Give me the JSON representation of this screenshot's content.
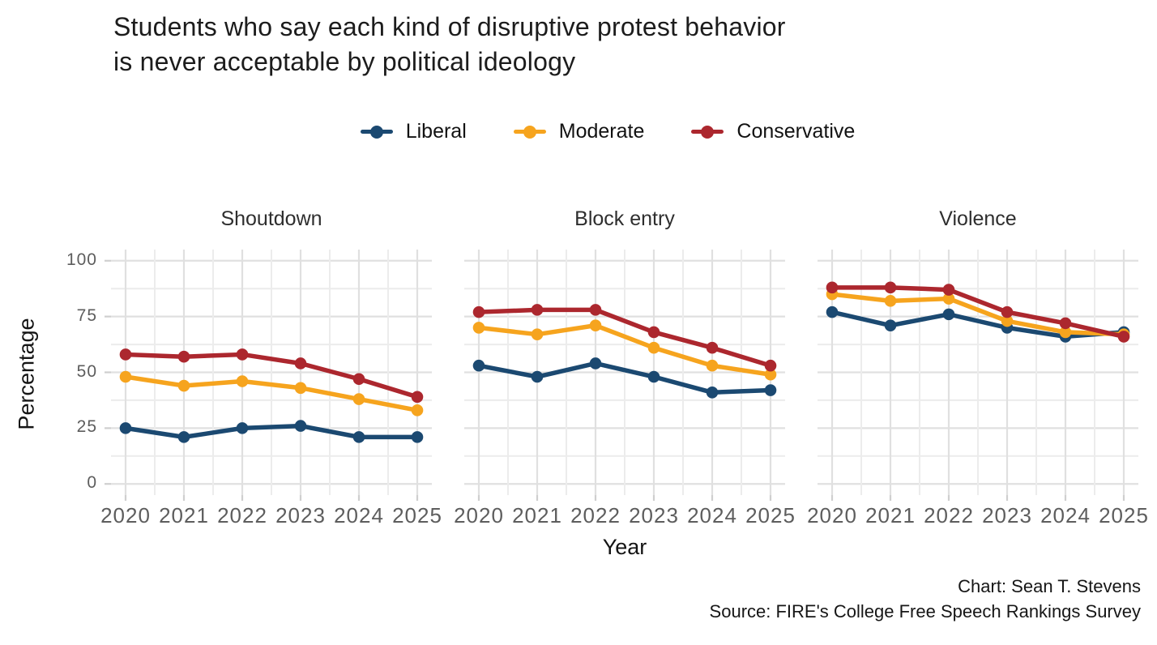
{
  "title": {
    "line1": "Students who say each kind of disruptive protest behavior",
    "line2": "is never acceptable by political ideology"
  },
  "legend": [
    {
      "label": "Liberal",
      "color": "#1B4971"
    },
    {
      "label": "Moderate",
      "color": "#F6A41E"
    },
    {
      "label": "Conservative",
      "color": "#AC272E"
    }
  ],
  "axes": {
    "y_label": "Percentage",
    "x_label": "Year",
    "y_ticks": [
      0,
      25,
      50,
      75,
      100
    ],
    "x_ticks": [
      2020,
      2021,
      2022,
      2023,
      2024,
      2025
    ]
  },
  "footer": {
    "credit": "Chart: Sean T. Stevens",
    "source": "Source: FIRE's College Free Speech Rankings Survey"
  },
  "chart_data": {
    "type": "line",
    "title": "Students who say each kind of disruptive protest behavior is never acceptable by political ideology",
    "xlabel": "Year",
    "ylabel": "Percentage",
    "x": [
      2020,
      2021,
      2022,
      2023,
      2024,
      2025
    ],
    "ylim": [
      0,
      100
    ],
    "y_major_ticks": [
      0,
      25,
      50,
      75,
      100
    ],
    "grid": true,
    "legend_position": "top",
    "colors": {
      "grid_major": "#e0e0e0",
      "grid_minor": "#ececec",
      "axis_tick": "#cfcfcf",
      "tick_text": "#5d5d5d"
    },
    "panels": [
      {
        "title": "Shoutdown",
        "series": [
          {
            "name": "Liberal",
            "color": "#1B4971",
            "values": [
              25,
              21,
              25,
              26,
              21,
              21
            ]
          },
          {
            "name": "Moderate",
            "color": "#F6A41E",
            "values": [
              48,
              44,
              46,
              43,
              38,
              33
            ]
          },
          {
            "name": "Conservative",
            "color": "#AC272E",
            "values": [
              58,
              57,
              58,
              54,
              47,
              39
            ]
          }
        ]
      },
      {
        "title": "Block entry",
        "series": [
          {
            "name": "Liberal",
            "color": "#1B4971",
            "values": [
              53,
              48,
              54,
              48,
              41,
              42
            ]
          },
          {
            "name": "Moderate",
            "color": "#F6A41E",
            "values": [
              70,
              67,
              71,
              61,
              53,
              49
            ]
          },
          {
            "name": "Conservative",
            "color": "#AC272E",
            "values": [
              77,
              78,
              78,
              68,
              61,
              53
            ]
          }
        ]
      },
      {
        "title": "Violence",
        "series": [
          {
            "name": "Liberal",
            "color": "#1B4971",
            "values": [
              77,
              71,
              76,
              70,
              66,
              68
            ]
          },
          {
            "name": "Moderate",
            "color": "#F6A41E",
            "values": [
              85,
              82,
              83,
              73,
              68,
              67
            ]
          },
          {
            "name": "Conservative",
            "color": "#AC272E",
            "values": [
              88,
              88,
              87,
              77,
              72,
              66
            ]
          }
        ]
      }
    ]
  }
}
